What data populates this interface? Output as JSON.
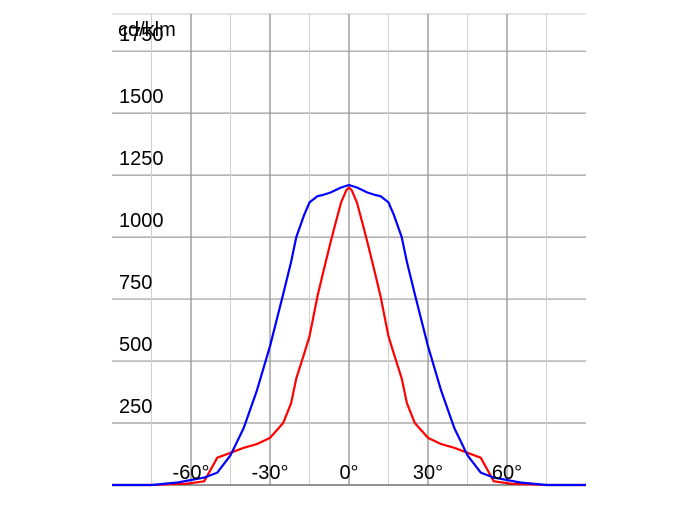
{
  "chart_data": {
    "type": "line",
    "title": "",
    "ylabel": "cd/klm",
    "xlabel": "",
    "xlim": [
      -90,
      90
    ],
    "ylim": [
      0,
      1900
    ],
    "grid": true,
    "x_ticks": [
      {
        "value": -60,
        "label": "-60°"
      },
      {
        "value": -30,
        "label": "-30°"
      },
      {
        "value": 0,
        "label": "0°"
      },
      {
        "value": 30,
        "label": "30°"
      },
      {
        "value": 60,
        "label": "60°"
      }
    ],
    "y_ticks": [
      {
        "value": 250,
        "label": "250"
      },
      {
        "value": 500,
        "label": "500"
      },
      {
        "value": 750,
        "label": "750"
      },
      {
        "value": 1000,
        "label": "1000"
      },
      {
        "value": 1250,
        "label": "1250"
      },
      {
        "value": 1500,
        "label": "1500"
      },
      {
        "value": 1750,
        "label": "1750"
      }
    ],
    "series": [
      {
        "color": "#ff0000",
        "x": [
          -90,
          -75,
          -62,
          -55,
          -50,
          -45,
          -40,
          -35,
          -30,
          -25,
          -22,
          -20,
          -17,
          -15,
          -12,
          -10,
          -7,
          -5,
          -3,
          -1,
          0,
          1,
          3,
          5,
          7,
          10,
          12,
          15,
          17,
          20,
          22,
          25,
          30,
          35,
          40,
          45,
          50,
          55,
          62,
          75,
          90
        ],
        "y": [
          0,
          0,
          5,
          15,
          110,
          130,
          150,
          165,
          190,
          250,
          330,
          430,
          530,
          600,
          760,
          850,
          980,
          1060,
          1140,
          1190,
          1200,
          1190,
          1140,
          1060,
          980,
          850,
          760,
          600,
          530,
          430,
          330,
          250,
          190,
          165,
          150,
          130,
          110,
          15,
          5,
          0,
          0
        ]
      },
      {
        "color": "#0000ff",
        "x": [
          -90,
          -75,
          -65,
          -60,
          -55,
          -50,
          -45,
          -40,
          -35,
          -30,
          -25,
          -22,
          -20,
          -17,
          -15,
          -12,
          -10,
          -7,
          -5,
          -3,
          0,
          3,
          5,
          7,
          10,
          12,
          15,
          17,
          20,
          22,
          25,
          30,
          35,
          40,
          45,
          50,
          55,
          60,
          65,
          75,
          90
        ],
        "y": [
          0,
          0,
          10,
          20,
          30,
          50,
          120,
          230,
          380,
          560,
          770,
          900,
          1000,
          1090,
          1140,
          1165,
          1170,
          1180,
          1190,
          1200,
          1210,
          1200,
          1190,
          1180,
          1170,
          1165,
          1140,
          1090,
          1000,
          900,
          770,
          560,
          380,
          230,
          120,
          50,
          30,
          20,
          10,
          0,
          0
        ]
      }
    ]
  }
}
